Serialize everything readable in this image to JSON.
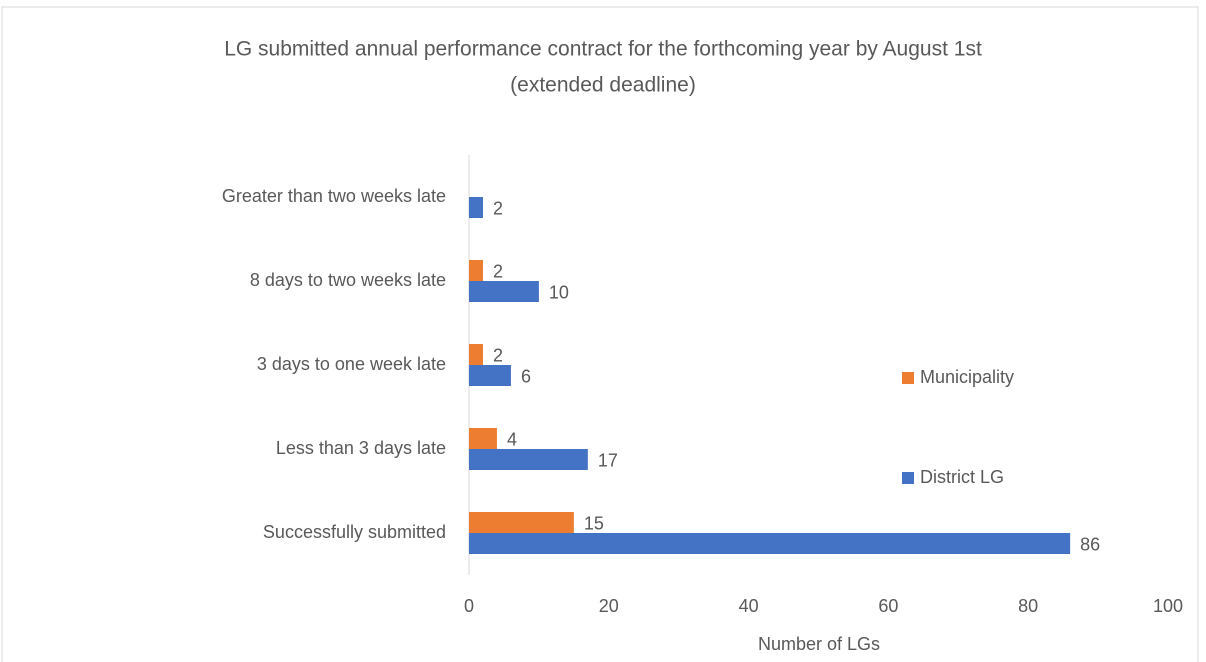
{
  "chart_data": {
    "type": "hbar",
    "title": [
      "LG submitted annual performance contract for the forthcoming year by August 1st",
      "(extended deadline)"
    ],
    "categories": [
      "Greater than two weeks late",
      "8 days to two weeks late",
      "3 days to one week late",
      "Less than 3 days late",
      "Successfully submitted"
    ],
    "series": [
      {
        "name": "Municipality",
        "color": "#ed7d31",
        "values": [
          null,
          2,
          2,
          4,
          15
        ]
      },
      {
        "name": "District LG",
        "color": "#4472c4",
        "values": [
          2,
          10,
          6,
          17,
          86
        ]
      }
    ],
    "xlabel": "Number of LGs",
    "xlim": [
      0,
      100
    ],
    "xticks": [
      0,
      20,
      40,
      60,
      80,
      100
    ],
    "data_labels": true,
    "legend": "right"
  }
}
